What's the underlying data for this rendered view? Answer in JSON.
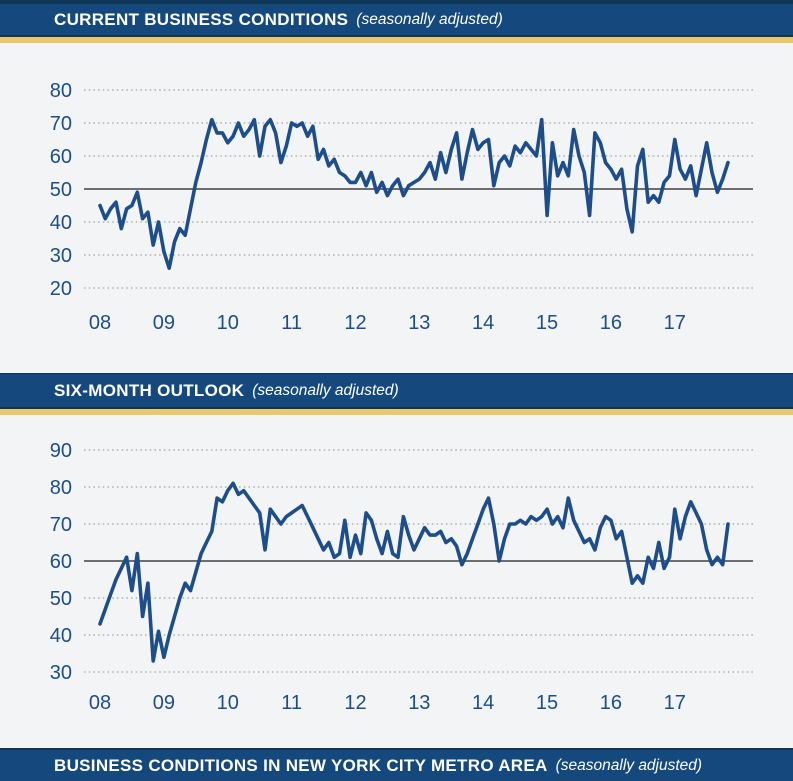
{
  "colors": {
    "header_navy": "#15497E",
    "header_dark_edge": "#0F3557",
    "gold_bar": "#E9C76B",
    "page_background": "#F2F4F6",
    "series_line": "#1E4D8B",
    "axis_label": "#1D4E87",
    "reference_line": "#6E6E6E",
    "grid_dots": "#9DA2A7"
  },
  "headers": {
    "chart1": {
      "title": "CURRENT BUSINESS CONDITIONS",
      "subtitle": "(seasonally adjusted)"
    },
    "chart2": {
      "title": "SIX-MONTH OUTLOOK",
      "subtitle": "(seasonally adjusted)"
    },
    "footer": {
      "title": "BUSINESS CONDITIONS IN NEW YORK CITY METRO AREA",
      "subtitle": "(seasonally adjusted)"
    }
  },
  "chart_data": [
    {
      "type": "line",
      "title": "CURRENT BUSINESS CONDITIONS (seasonally adjusted)",
      "x_unit": "monthly, Jan 2008 - Nov 2017",
      "x_tick_labels": [
        "08",
        "09",
        "10",
        "11",
        "12",
        "13",
        "14",
        "15",
        "16",
        "17"
      ],
      "y_ticks": [
        80,
        70,
        60,
        50,
        40,
        30,
        20
      ],
      "ylim": [
        16,
        86
      ],
      "reference_line": 50,
      "grid": "dotted horizontal lines at each y tick, solid gray line at 50",
      "legend": "none",
      "series": [
        {
          "name": "Current Business Conditions",
          "values": [
            45,
            41,
            44,
            46,
            38,
            44,
            45,
            49,
            41,
            43,
            33,
            40,
            31,
            26,
            34,
            38,
            36,
            44,
            52,
            58,
            65,
            71,
            67,
            67,
            64,
            66,
            70,
            66,
            68,
            71,
            60,
            69,
            71,
            67,
            58,
            63,
            70,
            69,
            70,
            66,
            69,
            59,
            62,
            57,
            59,
            55,
            54,
            52,
            52,
            55,
            51,
            55,
            49,
            52,
            48,
            51,
            53,
            48,
            51,
            52,
            53,
            55,
            58,
            53,
            61,
            55,
            62,
            67,
            53,
            61,
            68,
            62,
            64,
            65,
            51,
            58,
            60,
            57,
            63,
            61,
            64,
            62,
            60,
            71,
            42,
            64,
            54,
            58,
            54,
            68,
            60,
            55,
            42,
            67,
            64,
            58,
            56,
            53,
            56,
            44,
            37,
            57,
            62,
            46,
            48,
            46,
            52,
            54,
            65,
            56,
            53,
            57,
            48,
            56,
            64,
            55,
            49,
            53,
            58
          ]
        }
      ]
    },
    {
      "type": "line",
      "title": "SIX-MONTH OUTLOOK (seasonally adjusted)",
      "x_unit": "monthly, Jan 2008 - Nov 2017",
      "x_tick_labels": [
        "08",
        "09",
        "10",
        "11",
        "12",
        "13",
        "14",
        "15",
        "16",
        "17"
      ],
      "y_ticks": [
        90,
        80,
        70,
        60,
        50,
        40,
        30
      ],
      "ylim": [
        26,
        96
      ],
      "reference_line": 60,
      "grid": "dotted horizontal lines at each y tick, solid gray line at 60",
      "legend": "none",
      "series": [
        {
          "name": "Six-Month Outlook",
          "values": [
            43,
            47,
            51,
            55,
            58,
            61,
            52,
            62,
            45,
            54,
            33,
            41,
            34,
            40,
            45,
            50,
            54,
            52,
            57,
            62,
            65,
            68,
            77,
            76,
            79,
            81,
            78,
            79,
            77,
            75,
            73,
            63,
            74,
            72,
            70,
            72,
            73,
            74,
            75,
            72,
            69,
            66,
            63,
            65,
            61,
            62,
            71,
            61,
            67,
            62,
            73,
            71,
            66,
            62,
            68,
            62,
            61,
            72,
            67,
            63,
            66,
            69,
            67,
            67,
            68,
            65,
            66,
            64,
            59,
            62,
            66,
            70,
            74,
            77,
            70,
            60,
            66,
            70,
            70,
            71,
            70,
            72,
            71,
            72,
            74,
            70,
            72,
            69,
            77,
            71,
            68,
            65,
            66,
            63,
            69,
            72,
            71,
            66,
            68,
            61,
            54,
            56,
            54,
            61,
            58,
            65,
            58,
            61,
            74,
            66,
            72,
            76,
            73,
            70,
            63,
            59,
            61,
            59,
            70
          ]
        }
      ]
    }
  ]
}
